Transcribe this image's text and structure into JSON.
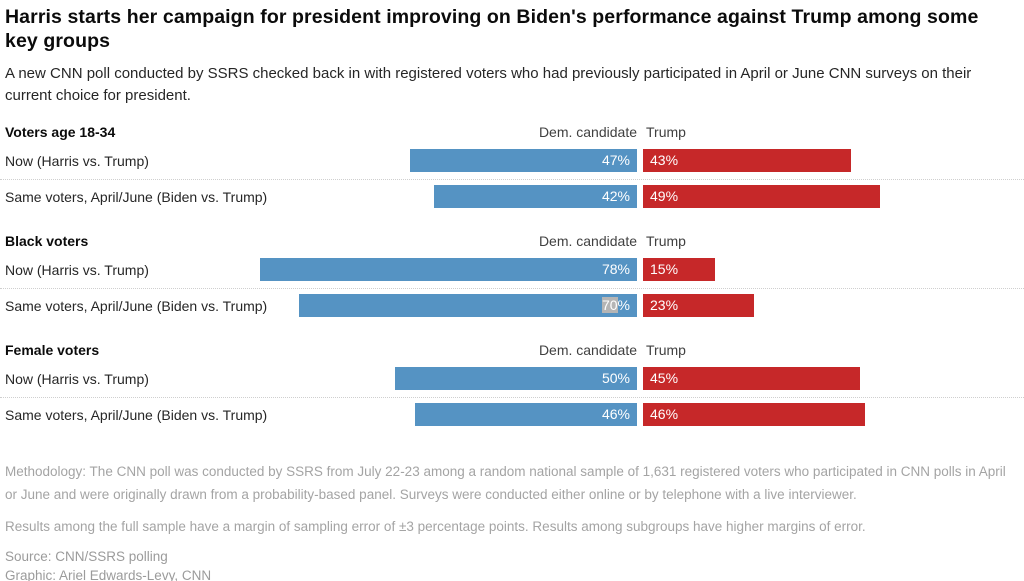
{
  "header": {
    "title": "Harris starts her campaign for president improving on Biden's performance against Trump among some key groups",
    "subtitle": "A new CNN poll conducted by SSRS checked back in with registered voters who had previously participated in April or June CNN surveys on their current choice for president."
  },
  "chart_data": {
    "type": "bar",
    "orientation": "diverging-horizontal",
    "unit": "%",
    "value_range": [
      0,
      100
    ],
    "column_headers": {
      "dem": "Dem. candidate",
      "rep": "Trump"
    },
    "colors": {
      "dem": "#5593c3",
      "rep": "#c62829",
      "selection_highlight": "#b5b5b5"
    },
    "groups": [
      {
        "label": "Voters age 18-34",
        "rows": [
          {
            "label": "Now (Harris vs. Trump)",
            "dem": 47,
            "rep": 43
          },
          {
            "label": "Same voters, April/June (Biden vs. Trump)",
            "dem": 42,
            "rep": 49
          }
        ]
      },
      {
        "label": "Black voters",
        "rows": [
          {
            "label": "Now (Harris vs. Trump)",
            "dem": 78,
            "rep": 15
          },
          {
            "label": "Same voters, April/June (Biden vs. Trump)",
            "dem": 70,
            "rep": 23,
            "dem_text_selected": true
          }
        ]
      },
      {
        "label": "Female voters",
        "rows": [
          {
            "label": "Now (Harris vs. Trump)",
            "dem": 50,
            "rep": 45
          },
          {
            "label": "Same voters, April/June (Biden vs. Trump)",
            "dem": 46,
            "rep": 46
          }
        ]
      }
    ]
  },
  "footer": {
    "methodology": "Methodology: The CNN poll was conducted by SSRS from July 22-23 among a random national sample of 1,631 registered voters who participated in CNN polls in April or June and were originally drawn from a probability-based panel. Surveys were conducted either online or by telephone with a live interviewer.",
    "margin_note": "Results among the full sample have a margin of sampling error of ±3 percentage points. Results among subgroups have higher margins of error.",
    "source": "Source: CNN/SSRS polling",
    "credit": "Graphic: Ariel Edwards-Levy, CNN"
  }
}
